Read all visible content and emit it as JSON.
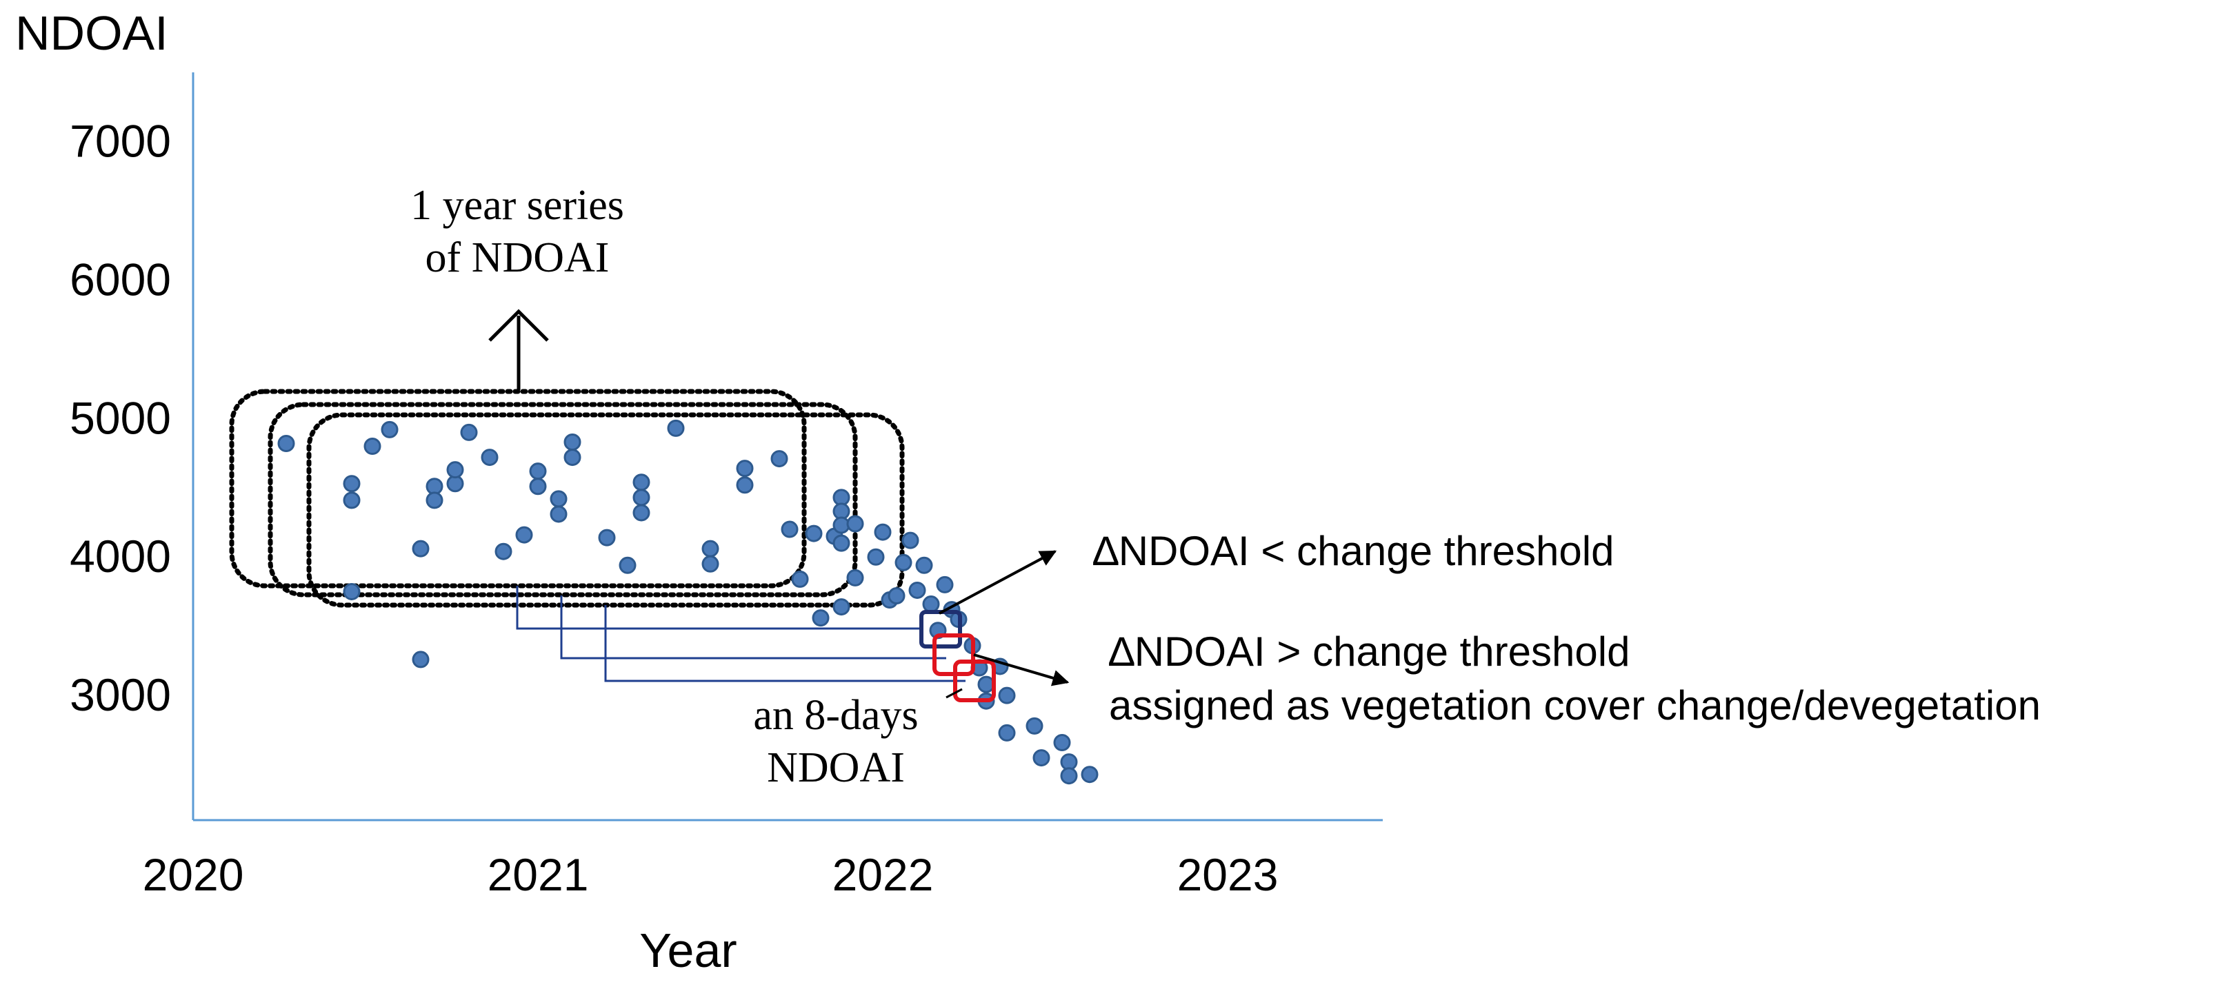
{
  "colors": {
    "axis": "#5b9bd5",
    "point_fill": "#4a7ab8",
    "point_stroke": "#2e5a8e",
    "connector": "#1f3f8f",
    "stable_box": "#1f3070",
    "change_box": "#e0141e",
    "text": "#000000"
  },
  "chart_data": {
    "type": "scatter",
    "title": "",
    "xlabel": "Year",
    "ylabel": "NDOAI",
    "xlim": [
      2020,
      2023.45
    ],
    "ylim": [
      2100,
      7500
    ],
    "x_ticks": [
      2020,
      2021,
      2022,
      2023
    ],
    "x_tick_labels": [
      "2020",
      "2021",
      "2022",
      "2023"
    ],
    "y_ticks": [
      3000,
      4000,
      5000,
      6000,
      7000
    ],
    "y_tick_labels": [
      "3000",
      "4000",
      "5000",
      "6000",
      "7000"
    ],
    "grid": false,
    "series": [
      {
        "name": "8-day NDOAI",
        "points": [
          [
            2020.27,
            4820
          ],
          [
            2020.46,
            3750
          ],
          [
            2020.46,
            4530
          ],
          [
            2020.46,
            4410
          ],
          [
            2020.52,
            4800
          ],
          [
            2020.57,
            4920
          ],
          [
            2020.66,
            4060
          ],
          [
            2020.66,
            3260
          ],
          [
            2020.7,
            4510
          ],
          [
            2020.7,
            4410
          ],
          [
            2020.76,
            4530
          ],
          [
            2020.76,
            4630
          ],
          [
            2020.8,
            4900
          ],
          [
            2020.86,
            4720
          ],
          [
            2020.9,
            4040
          ],
          [
            2020.96,
            4160
          ],
          [
            2021.0,
            4620
          ],
          [
            2021.0,
            4510
          ],
          [
            2021.06,
            4420
          ],
          [
            2021.06,
            4310
          ],
          [
            2021.1,
            4830
          ],
          [
            2021.1,
            4720
          ],
          [
            2021.2,
            4140
          ],
          [
            2021.26,
            3940
          ],
          [
            2021.3,
            4540
          ],
          [
            2021.3,
            4430
          ],
          [
            2021.3,
            4320
          ],
          [
            2021.4,
            4930
          ],
          [
            2021.5,
            4060
          ],
          [
            2021.5,
            3950
          ],
          [
            2021.6,
            4640
          ],
          [
            2021.6,
            4520
          ],
          [
            2021.7,
            4710
          ],
          [
            2021.73,
            4200
          ],
          [
            2021.76,
            3840
          ],
          [
            2021.8,
            4170
          ],
          [
            2021.82,
            3560
          ],
          [
            2021.86,
            4150
          ],
          [
            2021.88,
            4430
          ],
          [
            2021.88,
            4330
          ],
          [
            2021.88,
            4230
          ],
          [
            2021.88,
            4100
          ],
          [
            2021.88,
            3640
          ],
          [
            2021.92,
            4240
          ],
          [
            2021.92,
            3850
          ],
          [
            2021.98,
            4000
          ],
          [
            2022.0,
            4180
          ],
          [
            2022.02,
            3690
          ],
          [
            2022.04,
            3720
          ],
          [
            2022.06,
            3960
          ],
          [
            2022.08,
            4120
          ],
          [
            2022.1,
            3760
          ],
          [
            2022.12,
            3940
          ],
          [
            2022.14,
            3660
          ],
          [
            2022.16,
            3470
          ],
          [
            2022.18,
            3800
          ],
          [
            2022.2,
            3620
          ],
          [
            2022.22,
            3550
          ],
          [
            2022.26,
            3360
          ],
          [
            2022.28,
            3200
          ],
          [
            2022.3,
            3080
          ],
          [
            2022.3,
            2960
          ],
          [
            2022.34,
            3210
          ],
          [
            2022.36,
            3000
          ],
          [
            2022.36,
            2730
          ],
          [
            2022.44,
            2780
          ],
          [
            2022.46,
            2550
          ],
          [
            2022.52,
            2660
          ],
          [
            2022.54,
            2520
          ],
          [
            2022.54,
            2420
          ],
          [
            2022.6,
            2430
          ]
        ]
      }
    ],
    "annotations": {
      "series_box_label": [
        "1 year series",
        "of NDOAI"
      ],
      "point_label": [
        "an 8-days",
        "NDOAI"
      ],
      "stable_label": "∆NDOAI < change threshold",
      "change_label": [
        "∆NDOAI > change threshold",
        "assigned as vegetation cover change/devegetation"
      ]
    }
  }
}
